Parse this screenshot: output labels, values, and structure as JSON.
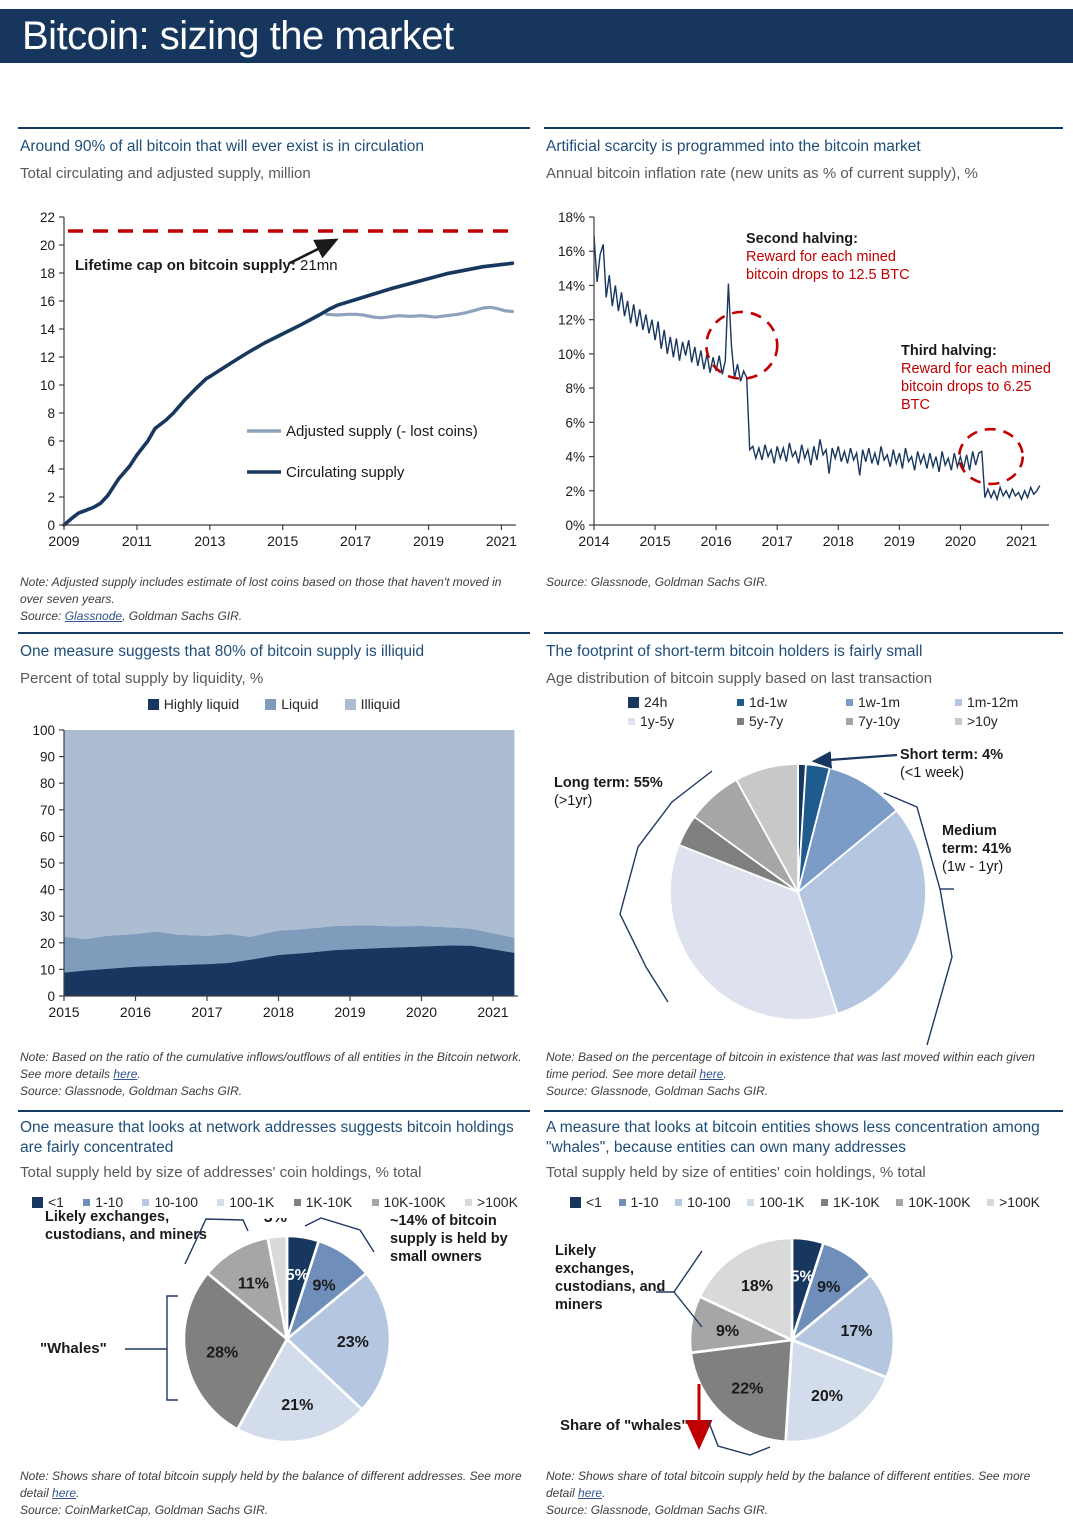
{
  "page": {
    "title": "Bitcoin: sizing the market"
  },
  "colors": {
    "header_navy": "#17365d",
    "heading": "#1f4e79",
    "subtitle": "#595959",
    "line_navy": "#17375e",
    "line_light": "#8ea3bb",
    "cap_red": "#c00000",
    "liquid_mid": "#7f9cbd",
    "illiquid_light": "#adbdd1",
    "link": "#31538f"
  },
  "panels": [
    {
      "heading": "Around 90% of all bitcoin that will ever exist is in circulation",
      "subtitle": "Total circulating and adjusted supply, million",
      "annotations": {
        "cap_bold": "Lifetime cap on bitcoin supply:",
        "cap_rest": " 21mn"
      },
      "note_lines": [
        [
          {
            "t": "Note: Adjusted supply includes estimate of lost coins based on those that haven't moved in over seven years."
          }
        ],
        [
          {
            "t": "Source: "
          },
          {
            "t": "Glassnode",
            "link": true
          },
          {
            "t": ", Goldman Sachs GIR."
          }
        ]
      ]
    },
    {
      "heading": "Artificial scarcity is programmed into the bitcoin market",
      "subtitle": "Annual bitcoin inflation rate (new units as % of current supply), %",
      "annotations": {
        "second_title": "Second halving:",
        "second_body": "Reward for each mined bitcoin drops to 12.5 BTC",
        "third_title": "Third halving:",
        "third_body": "Reward for each mined bitcoin drops to 6.25 BTC"
      },
      "note_lines": [
        [
          {
            "t": "Source: Glassnode, Goldman Sachs GIR."
          }
        ]
      ]
    },
    {
      "heading": "One measure suggests that 80% of bitcoin supply is illiquid",
      "subtitle": "Percent of total supply by liquidity, %",
      "note_lines": [
        [
          {
            "t": "Note: Based on the ratio of the cumulative inflows/outflows of all entities in the Bitcoin network. See more details "
          },
          {
            "t": "here",
            "link": true
          },
          {
            "t": "."
          }
        ],
        [
          {
            "t": "Source: Glassnode, Goldman Sachs GIR."
          }
        ]
      ]
    },
    {
      "heading": "The footprint of short-term bitcoin holders is fairly small",
      "subtitle": "Age distribution of bitcoin supply based on last transaction",
      "annotations": {
        "short_bold": "Short term: 4%",
        "short_rest": "(<1 week)",
        "long_bold": "Long term: 55%",
        "long_rest": "(>1yr)",
        "medium_bold": "Medium term: 41%",
        "medium_rest": "(1w - 1yr)"
      },
      "note_lines": [
        [
          {
            "t": "Note: Based on the percentage of bitcoin in existence that was last moved within each given time period. See more detail "
          },
          {
            "t": "here",
            "link": true
          },
          {
            "t": "."
          }
        ],
        [
          {
            "t": "Source: Glassnode, Goldman Sachs GIR."
          }
        ]
      ]
    },
    {
      "heading": "One measure that looks at network addresses suggests bitcoin holdings are fairly concentrated",
      "subtitle": "Total supply held by size of addresses' coin holdings, % total",
      "annotations": {
        "likely": "Likely exchanges, custodians, and miners",
        "small_owners": "~14% of bitcoin supply is held by small owners",
        "whales": "\"Whales\""
      },
      "note_lines": [
        [
          {
            "t": "Note: Shows share of total bitcoin supply held by the balance of different addresses. See more detail "
          },
          {
            "t": "here",
            "link": true
          },
          {
            "t": "."
          }
        ],
        [
          {
            "t": "Source: CoinMarketCap, Goldman Sachs GIR."
          }
        ]
      ]
    },
    {
      "heading": "A measure that looks at bitcoin entities shows less concentration among \"whales\", because entities can own many addresses",
      "subtitle": "Total supply held by size of entities' coin holdings, % total",
      "annotations": {
        "likely": "Likely exchanges, custodians, and miners",
        "whales_share": "Share of \"whales\""
      },
      "note_lines": [
        [
          {
            "t": "Note: Shows share of total bitcoin supply held by the balance of different entities. See more detail "
          },
          {
            "t": "here",
            "link": true
          },
          {
            "t": "."
          }
        ],
        [
          {
            "t": "Source: Glassnode, Goldman Sachs GIR."
          }
        ]
      ]
    }
  ],
  "chart_data": [
    {
      "type": "line",
      "title": "Around 90% of all bitcoin that will ever exist is in circulation",
      "ylabel": "Total circulating and adjusted supply, million",
      "xlim": [
        2009,
        2021.4
      ],
      "ylim": [
        0,
        22
      ],
      "ytick_step": 2,
      "xticks": [
        2009,
        2011,
        2013,
        2015,
        2017,
        2019,
        2021
      ],
      "cap_line": {
        "y": 21,
        "color": "#c00000",
        "label": "Lifetime cap on bitcoin supply: 21mn"
      },
      "series": [
        {
          "name": "Adjusted supply (- lost coins)",
          "color": "#8ea3bb",
          "width": 3.2,
          "points": [
            [
              2016.2,
              15.05
            ],
            [
              2016.5,
              15.0
            ],
            [
              2016.8,
              15.05
            ],
            [
              2017.0,
              15.05
            ],
            [
              2017.2,
              15.0
            ],
            [
              2017.5,
              14.85
            ],
            [
              2017.7,
              14.8
            ],
            [
              2018.0,
              14.9
            ],
            [
              2018.2,
              14.95
            ],
            [
              2018.5,
              14.9
            ],
            [
              2018.8,
              14.95
            ],
            [
              2019.0,
              14.9
            ],
            [
              2019.2,
              14.85
            ],
            [
              2019.5,
              14.95
            ],
            [
              2019.8,
              15.05
            ],
            [
              2020.0,
              15.15
            ],
            [
              2020.3,
              15.35
            ],
            [
              2020.5,
              15.5
            ],
            [
              2020.7,
              15.55
            ],
            [
              2020.9,
              15.45
            ],
            [
              2021.1,
              15.3
            ],
            [
              2021.3,
              15.25
            ]
          ]
        },
        {
          "name": "Circulating supply",
          "color": "#17375e",
          "width": 3.6,
          "points": [
            [
              2009.0,
              0
            ],
            [
              2009.2,
              0.45
            ],
            [
              2009.4,
              0.85
            ],
            [
              2009.6,
              1.05
            ],
            [
              2009.8,
              1.25
            ],
            [
              2010.0,
              1.55
            ],
            [
              2010.2,
              2.1
            ],
            [
              2010.5,
              3.3
            ],
            [
              2010.8,
              4.2
            ],
            [
              2011.0,
              5.0
            ],
            [
              2011.3,
              6.0
            ],
            [
              2011.5,
              6.9
            ],
            [
              2011.8,
              7.5
            ],
            [
              2012.0,
              8.0
            ],
            [
              2012.3,
              8.9
            ],
            [
              2012.6,
              9.7
            ],
            [
              2012.9,
              10.45
            ],
            [
              2013.0,
              10.6
            ],
            [
              2013.3,
              11.1
            ],
            [
              2013.6,
              11.6
            ],
            [
              2014.0,
              12.25
            ],
            [
              2014.5,
              13.0
            ],
            [
              2015.0,
              13.65
            ],
            [
              2015.5,
              14.3
            ],
            [
              2016.0,
              15.0
            ],
            [
              2016.3,
              15.45
            ],
            [
              2016.5,
              15.7
            ],
            [
              2017.0,
              16.1
            ],
            [
              2017.5,
              16.5
            ],
            [
              2018.0,
              16.9
            ],
            [
              2018.5,
              17.25
            ],
            [
              2019.0,
              17.6
            ],
            [
              2019.5,
              17.95
            ],
            [
              2020.0,
              18.2
            ],
            [
              2020.5,
              18.45
            ],
            [
              2021.0,
              18.6
            ],
            [
              2021.3,
              18.7
            ]
          ]
        }
      ]
    },
    {
      "type": "line",
      "title": "Artificial scarcity is programmed into the bitcoin market",
      "ylabel": "Annual bitcoin inflation rate (new units as % of current supply), %",
      "xlim": [
        2014,
        2021.45
      ],
      "ylim": [
        0,
        18
      ],
      "ytick_step": 2,
      "y_suffix": "%",
      "xticks": [
        2014,
        2015,
        2016,
        2017,
        2018,
        2019,
        2020,
        2021
      ],
      "halving_circles": [
        {
          "x": 2016.42,
          "y": 10.5,
          "rx": 0.58,
          "ry": 1.95
        },
        {
          "x": 2020.5,
          "y": 4.0,
          "rx": 0.52,
          "ry": 1.6
        }
      ],
      "series": [
        {
          "name": "Annual inflation rate",
          "color": "#17375e",
          "width": 1.4,
          "t0": 2014,
          "dt": 0.05,
          "values": [
            16.9,
            14.2,
            15.8,
            16.4,
            13.3,
            14.6,
            12.8,
            14.0,
            12.5,
            13.6,
            12.2,
            13.1,
            11.8,
            12.9,
            11.6,
            12.6,
            11.4,
            12.3,
            11.2,
            12.0,
            10.8,
            11.9,
            10.3,
            11.4,
            10.0,
            11.0,
            9.8,
            10.9,
            9.6,
            10.7,
            9.9,
            10.8,
            9.5,
            10.4,
            9.3,
            10.2,
            9.1,
            10.0,
            8.9,
            9.8,
            9.0,
            9.9,
            8.8,
            9.6,
            14.1,
            10.5,
            8.6,
            9.4,
            8.4,
            9.0,
            8.6,
            4.4,
            4.6,
            3.9,
            4.5,
            3.8,
            4.7,
            4.0,
            4.4,
            3.6,
            4.6,
            3.9,
            4.5,
            3.7,
            4.8,
            4.0,
            4.3,
            3.6,
            4.7,
            3.9,
            4.4,
            3.5,
            4.6,
            3.8,
            5.0,
            4.1,
            4.4,
            3.0,
            4.5,
            3.9,
            4.6,
            3.7,
            4.3,
            3.6,
            4.5,
            3.8,
            4.2,
            2.9,
            4.4,
            3.7,
            4.5,
            3.6,
            4.2,
            3.5,
            4.6,
            3.8,
            4.1,
            3.4,
            4.4,
            3.6,
            4.2,
            3.3,
            4.5,
            3.7,
            4.0,
            3.2,
            4.3,
            3.6,
            4.1,
            3.3,
            4.2,
            3.4,
            4.0,
            3.1,
            4.3,
            3.5,
            3.9,
            3.2,
            4.2,
            3.4,
            4.0,
            3.3,
            4.1,
            3.2,
            4.3,
            3.5,
            4.2,
            4.3,
            1.6,
            2.1,
            1.6,
            2.0,
            1.5,
            2.2,
            1.7,
            2.0,
            1.6,
            2.1,
            1.7,
            1.9,
            1.5,
            2.0,
            1.6,
            2.2,
            1.8,
            2.0,
            2.3
          ]
        }
      ]
    },
    {
      "type": "area",
      "title": "One measure suggests that 80% of bitcoin supply is illiquid",
      "ylabel": "Percent of total supply by liquidity, %",
      "xlim": [
        2015,
        2021.35
      ],
      "ylim": [
        0,
        100
      ],
      "ytick_step": 10,
      "xticks": [
        2015,
        2016,
        2017,
        2018,
        2019,
        2020,
        2021
      ],
      "x": [
        2015.0,
        2015.3,
        2015.6,
        2016.0,
        2016.3,
        2016.6,
        2017.0,
        2017.3,
        2017.6,
        2018.0,
        2018.4,
        2018.8,
        2019.2,
        2019.6,
        2020.0,
        2020.4,
        2020.7,
        2021.0,
        2021.3
      ],
      "series": [
        {
          "name": "Highly liquid",
          "color": "#17375e",
          "values": [
            8.8,
            9.6,
            10.2,
            11.0,
            11.3,
            11.6,
            12.0,
            12.4,
            13.6,
            15.4,
            16.2,
            17.3,
            17.8,
            18.2,
            18.6,
            19.0,
            18.9,
            17.6,
            16.2
          ]
        },
        {
          "name": "Liquid",
          "color": "#7f9cbd",
          "values_top": [
            22.3,
            21.4,
            22.6,
            23.3,
            24.2,
            23.0,
            22.6,
            23.3,
            22.2,
            24.6,
            25.3,
            26.3,
            26.6,
            26.2,
            26.3,
            25.8,
            25.3,
            23.6,
            21.9
          ]
        },
        {
          "name": "Illiquid",
          "color": "#adbdd1",
          "values_top_constant": 100
        }
      ]
    },
    {
      "type": "pie",
      "title": "The footprint of short-term bitcoin holders is fairly small",
      "labels": [
        "24h",
        "1d-1w",
        "1w-1m",
        "1m-12m",
        "1y-5y",
        "5y-7y",
        "7y-10y",
        ">10y"
      ],
      "values": [
        1,
        3,
        10,
        31,
        36,
        4,
        7,
        8
      ],
      "colors": [
        "#17375e",
        "#1e5c8d",
        "#7b9cc7",
        "#b5c7e0",
        "#dde2ee",
        "#7f7f7f",
        "#a6a6a6",
        "#c8c8c8"
      ],
      "groups": {
        "short_term_pct": 4,
        "medium_term_pct": 41,
        "long_term_pct": 55
      },
      "show_labels": false
    },
    {
      "type": "pie",
      "title": "One measure that looks at network addresses suggests bitcoin holdings are fairly concentrated",
      "labels": [
        "<1",
        "1-10",
        "10-100",
        "100-1K",
        "1K-10K",
        "10K-100K",
        ">100K"
      ],
      "values": [
        5,
        9,
        23,
        21,
        28,
        11,
        3
      ],
      "colors": [
        "#17375e",
        "#6f8fba",
        "#b5c7e0",
        "#d3dcea",
        "#808080",
        "#a6a6a6",
        "#d9d9d9"
      ],
      "show_labels": true,
      "outside_label_idx": [
        6
      ],
      "white_label_idx": [
        0
      ]
    },
    {
      "type": "pie",
      "title": "A measure that looks at bitcoin entities shows less concentration among \"whales\"",
      "labels": [
        "<1",
        "1-10",
        "10-100",
        "100-1K",
        "1K-10K",
        "10K-100K",
        ">100K"
      ],
      "values": [
        5,
        9,
        17,
        20,
        22,
        9,
        18
      ],
      "colors": [
        "#17375e",
        "#6f8fba",
        "#b5c7e0",
        "#d3dcea",
        "#808080",
        "#a6a6a6",
        "#d9d9d9"
      ],
      "show_labels": true,
      "outside_label_idx": [],
      "white_label_idx": [
        0
      ]
    }
  ]
}
